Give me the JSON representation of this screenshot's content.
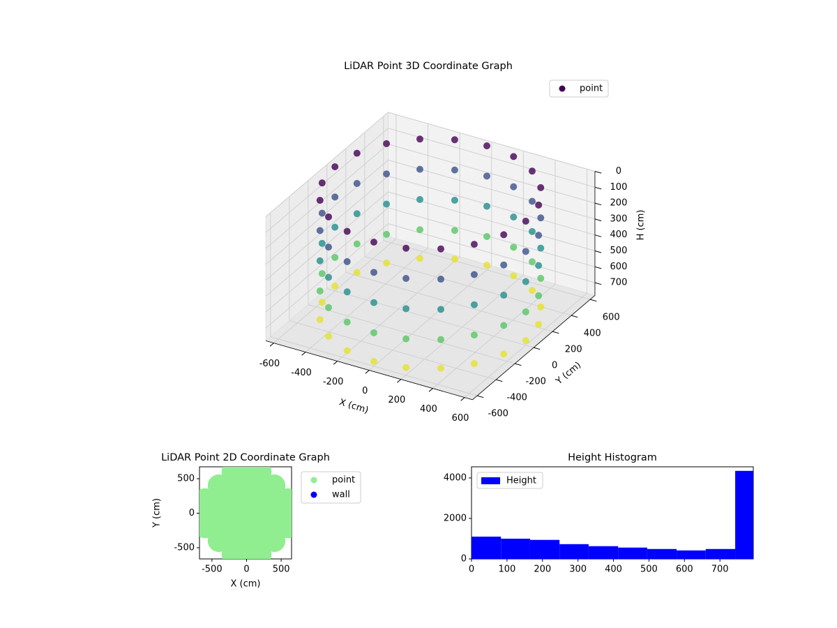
{
  "chart_data": [
    {
      "type": "scatter3d",
      "title": "LiDAR Point 3D Coordinate Graph",
      "xlabel": "X (cm)",
      "ylabel": "Y (cm)",
      "zlabel": "H (cm)",
      "xlim": [
        -650,
        650
      ],
      "ylim": [
        -650,
        650
      ],
      "zlim": [
        0,
        780
      ],
      "z_inverted": true,
      "xticks": [
        -600,
        -400,
        -200,
        0,
        200,
        400,
        600
      ],
      "yticks": [
        -600,
        -400,
        -200,
        0,
        200,
        400,
        600
      ],
      "zticks": [
        0,
        100,
        200,
        300,
        400,
        500,
        600,
        700
      ],
      "colormap": "viridis",
      "legend": "upper right",
      "grid": true,
      "series": [
        {
          "name": "point",
          "color": "#440154",
          "x": [
            600,
            600,
            600,
            600,
            600,
            571,
            571,
            571,
            571,
            571,
            485,
            485,
            485,
            485,
            485,
            353,
            353,
            353,
            353,
            353,
            185,
            185,
            185,
            185,
            185,
            0,
            0,
            0,
            0,
            0,
            -185,
            -185,
            -185,
            -185,
            -185,
            -353,
            -353,
            -353,
            -353,
            -353,
            -485,
            -485,
            -485,
            -485,
            -485,
            -571,
            -571,
            -571,
            -571,
            -571,
            -600,
            -600,
            -600,
            -600,
            -600,
            -571,
            -571,
            -571,
            -571,
            -571,
            -485,
            -485,
            -485,
            -485,
            -485,
            -353,
            -353,
            -353,
            -353,
            -353,
            -185,
            -185,
            -185,
            -185,
            -185,
            0,
            0,
            0,
            0,
            0,
            185,
            185,
            185,
            185,
            185,
            353,
            353,
            353,
            353,
            353,
            485,
            485,
            485,
            485,
            485,
            571,
            571,
            571,
            571,
            571
          ],
          "y": [
            0,
            0,
            0,
            0,
            0,
            185,
            185,
            185,
            185,
            185,
            353,
            353,
            353,
            353,
            353,
            485,
            485,
            485,
            485,
            485,
            571,
            571,
            571,
            571,
            571,
            600,
            600,
            600,
            600,
            600,
            571,
            571,
            571,
            571,
            571,
            485,
            485,
            485,
            485,
            485,
            353,
            353,
            353,
            353,
            353,
            185,
            185,
            185,
            185,
            185,
            0,
            0,
            0,
            0,
            0,
            -185,
            -185,
            -185,
            -185,
            -185,
            -353,
            -353,
            -353,
            -353,
            -353,
            -485,
            -485,
            -485,
            -485,
            -485,
            -571,
            -571,
            -571,
            -571,
            -571,
            -600,
            -600,
            -600,
            -600,
            -600,
            -571,
            -571,
            -571,
            -571,
            -571,
            -485,
            -485,
            -485,
            -485,
            -485,
            -353,
            -353,
            -353,
            -353,
            -353,
            -185,
            -185,
            -185,
            -185,
            -185
          ],
          "z": [
            0,
            190,
            380,
            570,
            750,
            0,
            190,
            380,
            570,
            750,
            0,
            190,
            380,
            570,
            750,
            0,
            190,
            380,
            570,
            750,
            0,
            190,
            380,
            570,
            750,
            0,
            190,
            380,
            570,
            750,
            0,
            190,
            380,
            570,
            750,
            0,
            190,
            380,
            570,
            750,
            0,
            190,
            380,
            570,
            750,
            0,
            190,
            380,
            570,
            750,
            0,
            190,
            380,
            570,
            750,
            0,
            190,
            380,
            570,
            750,
            0,
            190,
            380,
            570,
            750,
            0,
            190,
            380,
            570,
            750,
            0,
            190,
            380,
            570,
            750,
            0,
            190,
            380,
            570,
            750,
            0,
            190,
            380,
            570,
            750,
            0,
            190,
            380,
            570,
            750,
            0,
            190,
            380,
            570,
            750,
            0,
            190,
            380,
            570,
            750
          ]
        }
      ]
    },
    {
      "type": "scatter",
      "title": "LiDAR Point 2D Coordinate Graph",
      "xlabel": "X (cm)",
      "ylabel": "Y (cm)",
      "xlim": [
        -680,
        650
      ],
      "ylim": [
        -662,
        672
      ],
      "xticks": [
        -500,
        0,
        500
      ],
      "yticks": [
        -500,
        0,
        500
      ],
      "legend": "outside upper right",
      "series": [
        {
          "name": "point",
          "color": "#90ee90",
          "x": [
            -600,
            -600,
            -600,
            -400,
            -400,
            -400,
            -400,
            -400,
            -200,
            -200,
            -200,
            -200,
            -200,
            -200,
            -200,
            0,
            0,
            0,
            0,
            0,
            0,
            0,
            200,
            200,
            200,
            200,
            200,
            200,
            200,
            400,
            400,
            400,
            400,
            400,
            600,
            600,
            600
          ],
          "y": [
            -200,
            0,
            200,
            -400,
            -200,
            0,
            200,
            400,
            -600,
            -400,
            -200,
            0,
            200,
            400,
            600,
            -600,
            -400,
            -200,
            0,
            200,
            400,
            600,
            -600,
            -400,
            -200,
            0,
            200,
            400,
            600,
            -400,
            -200,
            0,
            200,
            400,
            -200,
            0,
            200
          ]
        },
        {
          "name": "wall",
          "color": "#0000ff",
          "x": [],
          "y": []
        }
      ]
    },
    {
      "type": "histogram",
      "title": "Height Histogram",
      "xlim": [
        0,
        794
      ],
      "ylim": [
        0,
        4550
      ],
      "xticks": [
        0,
        100,
        200,
        300,
        400,
        500,
        600,
        700
      ],
      "yticks": [
        0,
        2000,
        4000
      ],
      "legend": "upper left",
      "series": [
        {
          "name": "Height",
          "color": "#0000ff",
          "bins": [
            0,
            83,
            165,
            248,
            330,
            413,
            495,
            578,
            660,
            743,
            794
          ],
          "counts": [
            1100,
            1000,
            940,
            730,
            630,
            560,
            490,
            420,
            490,
            4350
          ]
        }
      ]
    }
  ]
}
